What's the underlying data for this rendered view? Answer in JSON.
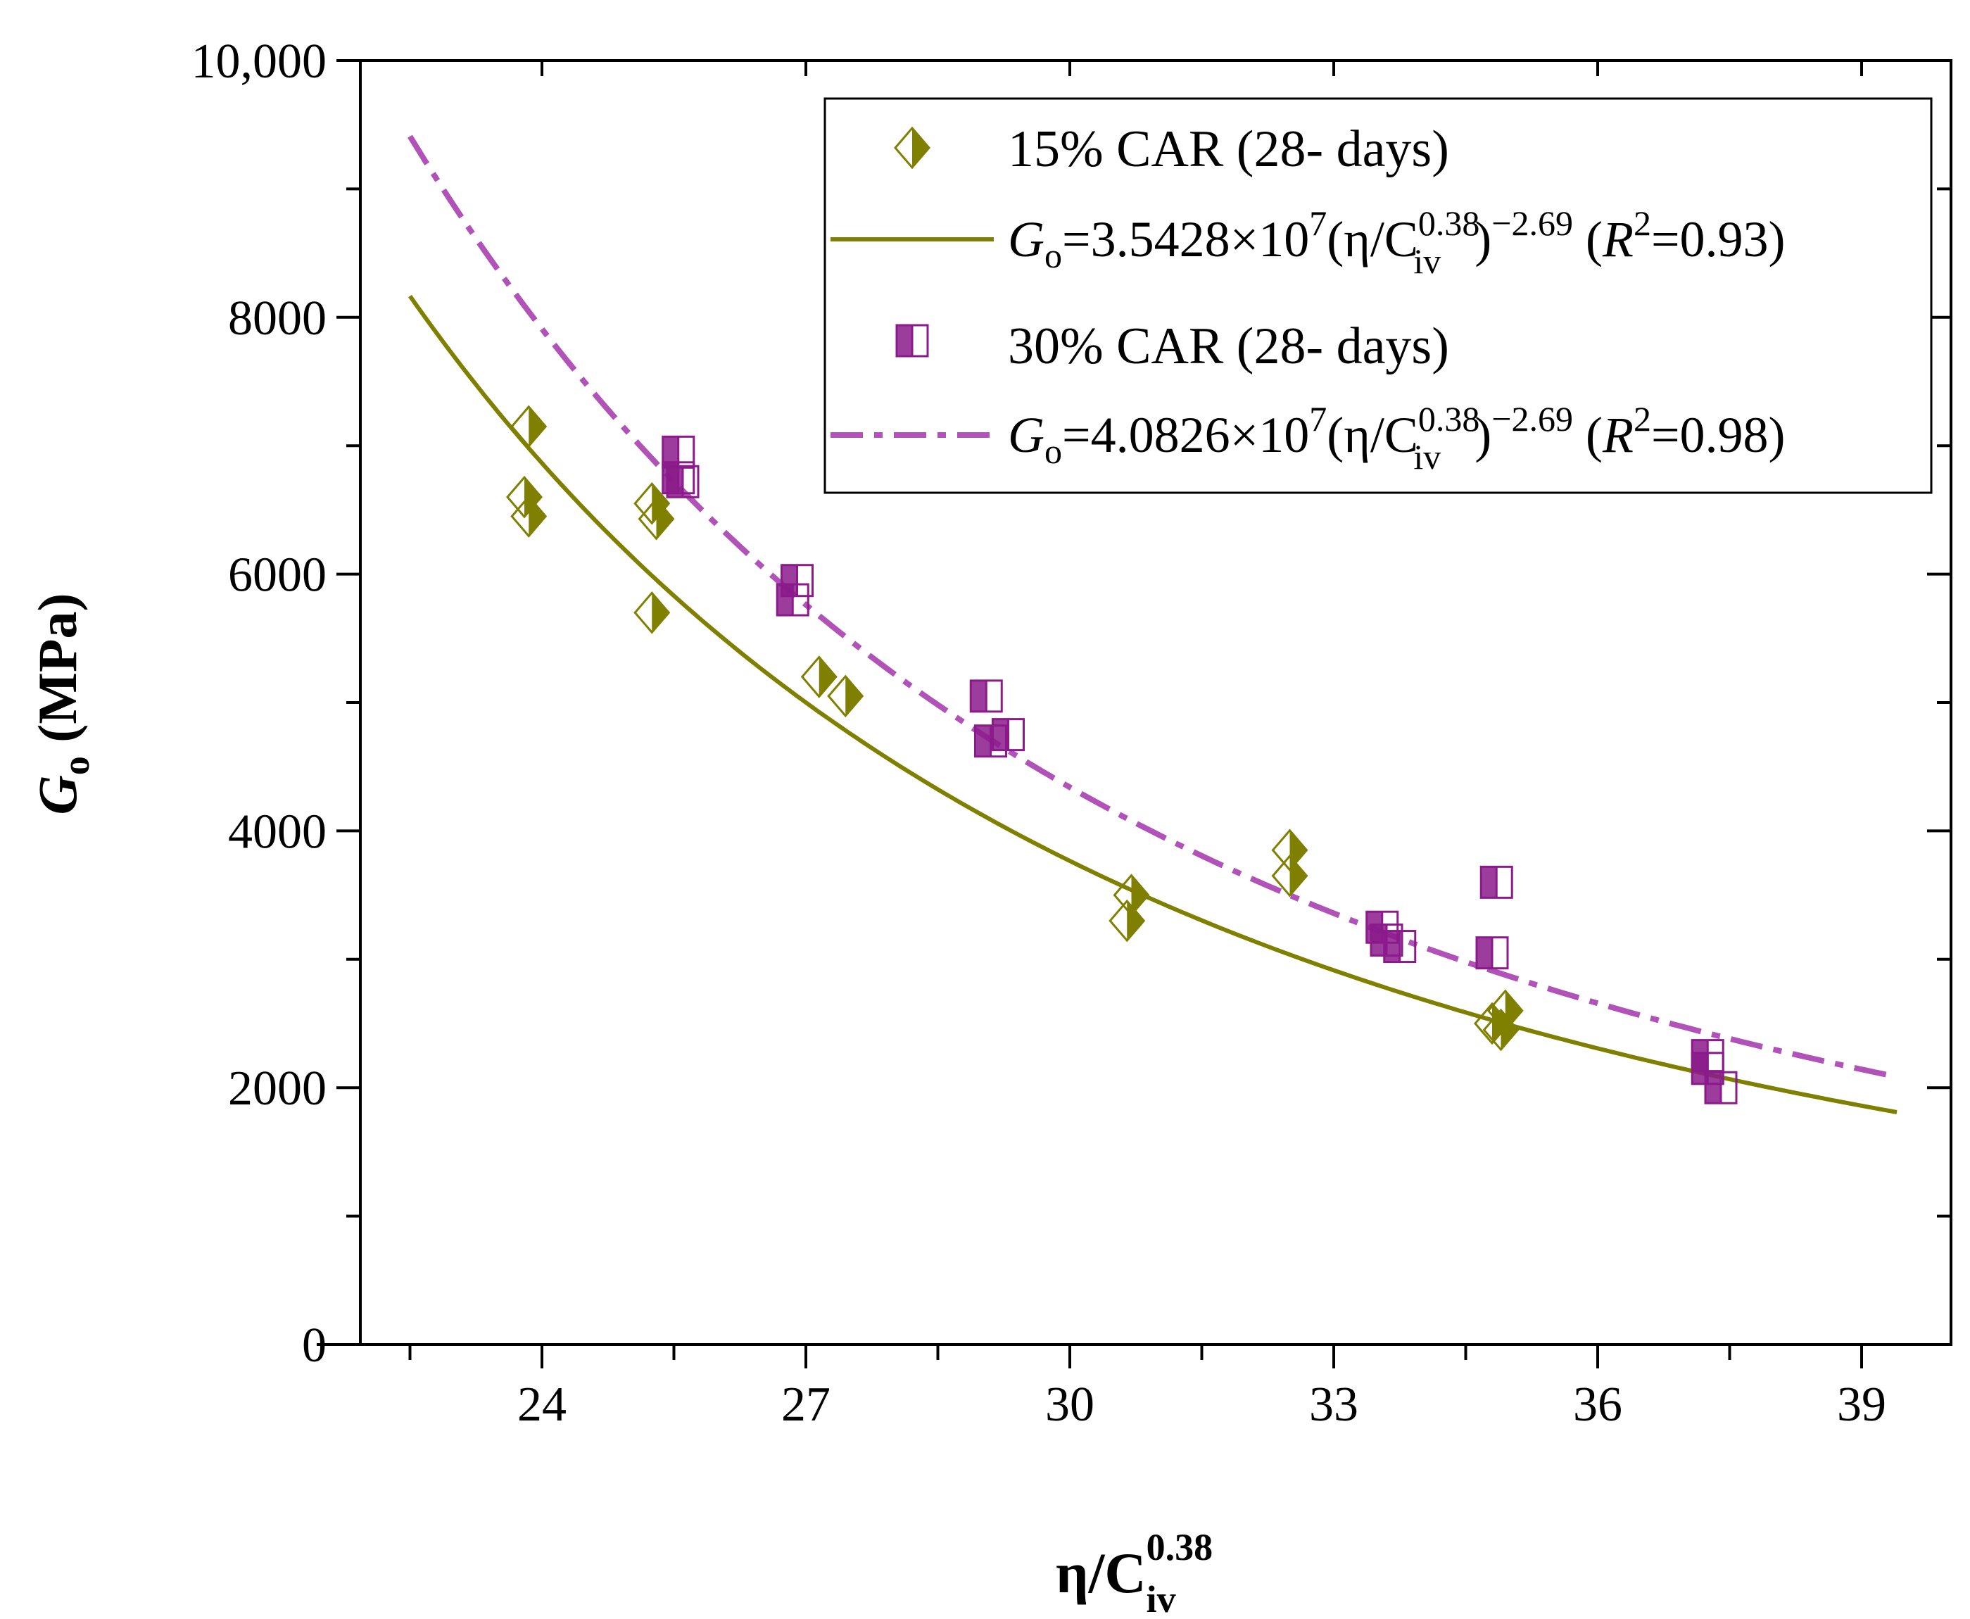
{
  "chart_data": {
    "type": "scatter",
    "xlim": [
      22.5,
      40
    ],
    "ylim": [
      0,
      10000
    ],
    "x_ticks": [
      24,
      27,
      30,
      33,
      36,
      39
    ],
    "x_tick_labels": [
      "24",
      "27",
      "30",
      "33",
      "36",
      "39"
    ],
    "x_minor_ticks": [
      22.5,
      25.5,
      28.5,
      31.5,
      34.5,
      37.5
    ],
    "y_ticks": [
      0,
      2000,
      4000,
      6000,
      8000,
      10000
    ],
    "y_tick_labels": [
      "0",
      "2000",
      "4000",
      "6000",
      "8000",
      "10,000"
    ],
    "y_minor_ticks": [
      1000,
      3000,
      5000,
      7000,
      9000
    ],
    "xlabel": {
      "main": "η/C",
      "sub": "iv",
      "sup": "0.38"
    },
    "ylabel": {
      "main": "G",
      "sub": "o",
      "rest": " (MPa)"
    },
    "legend_placement": "top-right",
    "series": [
      {
        "name": "15% CAR (28- days)",
        "marker": "half-filled-diamond",
        "color": "#7f7f00",
        "points": [
          [
            23.85,
            7150
          ],
          [
            23.8,
            6600
          ],
          [
            23.85,
            6450
          ],
          [
            25.25,
            6550
          ],
          [
            25.3,
            6430
          ],
          [
            25.25,
            5700
          ],
          [
            27.15,
            5200
          ],
          [
            27.45,
            5050
          ],
          [
            30.7,
            3500
          ],
          [
            30.65,
            3300
          ],
          [
            32.5,
            3850
          ],
          [
            32.5,
            3650
          ],
          [
            34.8,
            2500
          ],
          [
            34.9,
            2450
          ],
          [
            34.95,
            2600
          ]
        ]
      },
      {
        "name": "30% CAR (28- days)",
        "marker": "half-filled-square",
        "color": "#8b1a8b",
        "points": [
          [
            25.55,
            6950
          ],
          [
            25.55,
            6750
          ],
          [
            25.6,
            6720
          ],
          [
            26.9,
            5950
          ],
          [
            26.85,
            5800
          ],
          [
            29.05,
            5050
          ],
          [
            29.1,
            4700
          ],
          [
            29.3,
            4750
          ],
          [
            33.55,
            3250
          ],
          [
            33.6,
            3150
          ],
          [
            33.75,
            3100
          ],
          [
            34.85,
            3600
          ],
          [
            34.8,
            3050
          ],
          [
            37.25,
            2250
          ],
          [
            37.25,
            2150
          ],
          [
            37.4,
            2000
          ]
        ]
      }
    ],
    "fits": [
      {
        "name": "15% CAR fit",
        "coef_mantissa": "3.5428",
        "exponent_ten": "7",
        "exponent": "−2.69",
        "r2": "0.93",
        "a": 35428000,
        "b": -2.69,
        "x_range": [
          22.5,
          39.4
        ],
        "color": "#7f7f00",
        "style": "solid"
      },
      {
        "name": "30% CAR fit",
        "coef_mantissa": "4.0826",
        "exponent_ten": "7",
        "exponent": "−2.69",
        "r2": "0.98",
        "a": 40826000,
        "b": -2.69,
        "x_range": [
          22.5,
          39.4
        ],
        "color": "#b052b8",
        "style": "dash-dot"
      }
    ]
  }
}
